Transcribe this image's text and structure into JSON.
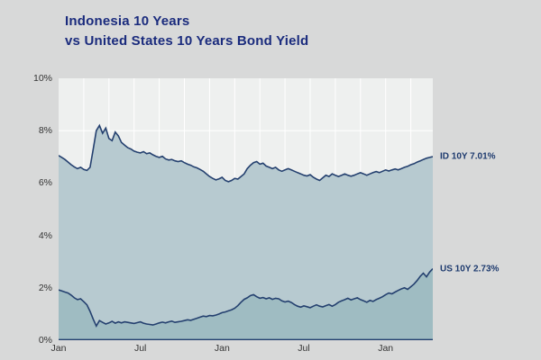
{
  "title": {
    "line1": "Indonesia 10 Years",
    "line2": "vs United States 10 Years Bond Yield"
  },
  "labels": {
    "id_series": "ID 10Y 7.01%",
    "us_series": "US 10Y 2.73%"
  },
  "colors": {
    "background": "#d8d9d9",
    "plot_background": "#eef0ef",
    "gridline": "#ffffff",
    "line": "#24406f",
    "id_fill": "#b7cad0",
    "us_fill": "#9fbcc2",
    "title_text": "#1a2b7d",
    "tick_text": "#333333",
    "series_label_text": "#1d3a6e"
  },
  "chart_data": {
    "type": "area",
    "title": "Indonesia 10 Years vs United States 10 Years Bond Yield",
    "xlabel": "",
    "ylabel": "",
    "ylim": [
      0,
      10
    ],
    "grid": true,
    "legend_position": "right",
    "y_ticks": [
      0,
      2,
      4,
      6,
      8,
      10
    ],
    "y_tick_labels": [
      "0%",
      "2%",
      "4%",
      "6%",
      "8%",
      "10%"
    ],
    "x_tick_labels": [
      "Jan",
      "Jul",
      "Jan",
      "Jul",
      "Jan"
    ],
    "x_tick_indices": [
      0,
      26,
      52,
      78,
      104
    ],
    "x_grid_step": 8,
    "series": [
      {
        "name": "ID 10Y",
        "last_value": 7.01,
        "values": [
          7.05,
          6.98,
          6.9,
          6.8,
          6.7,
          6.62,
          6.55,
          6.6,
          6.52,
          6.48,
          6.6,
          7.3,
          8.0,
          8.2,
          7.9,
          8.1,
          7.7,
          7.62,
          7.95,
          7.8,
          7.55,
          7.45,
          7.35,
          7.3,
          7.22,
          7.18,
          7.15,
          7.2,
          7.12,
          7.15,
          7.08,
          7.02,
          6.98,
          7.02,
          6.92,
          6.88,
          6.9,
          6.85,
          6.82,
          6.85,
          6.78,
          6.72,
          6.68,
          6.62,
          6.58,
          6.52,
          6.45,
          6.35,
          6.25,
          6.18,
          6.12,
          6.16,
          6.22,
          6.1,
          6.05,
          6.1,
          6.18,
          6.15,
          6.25,
          6.35,
          6.55,
          6.68,
          6.78,
          6.82,
          6.72,
          6.76,
          6.65,
          6.6,
          6.55,
          6.6,
          6.5,
          6.45,
          6.5,
          6.55,
          6.5,
          6.45,
          6.4,
          6.35,
          6.3,
          6.27,
          6.32,
          6.22,
          6.15,
          6.1,
          6.2,
          6.3,
          6.25,
          6.35,
          6.3,
          6.25,
          6.3,
          6.35,
          6.3,
          6.26,
          6.3,
          6.35,
          6.4,
          6.35,
          6.3,
          6.35,
          6.4,
          6.44,
          6.4,
          6.45,
          6.5,
          6.46,
          6.5,
          6.54,
          6.5,
          6.55,
          6.6,
          6.64,
          6.7,
          6.74,
          6.8,
          6.85,
          6.9,
          6.95,
          6.98,
          7.01
        ]
      },
      {
        "name": "US 10Y",
        "last_value": 2.73,
        "values": [
          1.92,
          1.88,
          1.84,
          1.8,
          1.72,
          1.62,
          1.55,
          1.58,
          1.47,
          1.35,
          1.1,
          0.8,
          0.54,
          0.75,
          0.68,
          0.62,
          0.66,
          0.72,
          0.65,
          0.7,
          0.66,
          0.7,
          0.68,
          0.66,
          0.64,
          0.67,
          0.7,
          0.65,
          0.62,
          0.6,
          0.58,
          0.62,
          0.66,
          0.69,
          0.66,
          0.7,
          0.73,
          0.68,
          0.7,
          0.72,
          0.75,
          0.78,
          0.76,
          0.8,
          0.84,
          0.88,
          0.92,
          0.9,
          0.94,
          0.93,
          0.96,
          1.0,
          1.05,
          1.08,
          1.12,
          1.16,
          1.22,
          1.32,
          1.45,
          1.56,
          1.62,
          1.7,
          1.74,
          1.66,
          1.6,
          1.63,
          1.58,
          1.62,
          1.56,
          1.6,
          1.58,
          1.5,
          1.46,
          1.49,
          1.44,
          1.36,
          1.3,
          1.26,
          1.31,
          1.28,
          1.24,
          1.3,
          1.35,
          1.3,
          1.27,
          1.32,
          1.36,
          1.3,
          1.36,
          1.45,
          1.5,
          1.55,
          1.6,
          1.54,
          1.58,
          1.62,
          1.55,
          1.5,
          1.45,
          1.52,
          1.48,
          1.55,
          1.6,
          1.66,
          1.74,
          1.8,
          1.77,
          1.84,
          1.9,
          1.96,
          2.0,
          1.94,
          2.04,
          2.14,
          2.28,
          2.44,
          2.56,
          2.42,
          2.6,
          2.73
        ]
      }
    ]
  }
}
